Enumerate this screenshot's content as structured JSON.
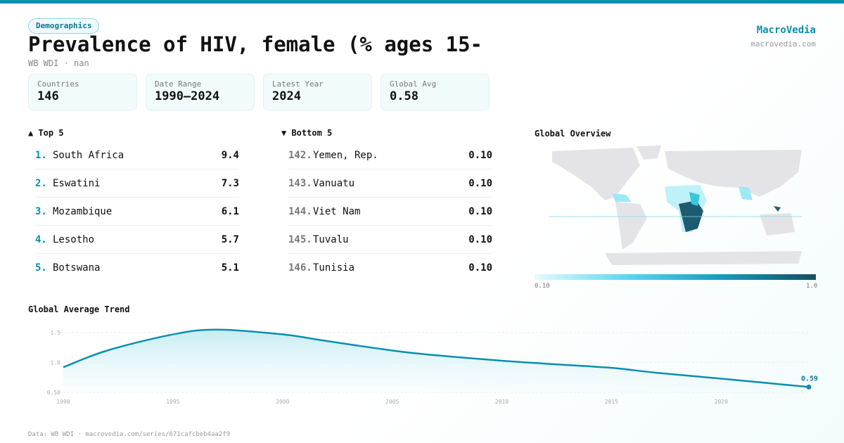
{
  "header": {
    "category": "Demographics",
    "title": "Prevalence of HIV, female (% ages 15-",
    "subtitle": "WB WDI · nan",
    "brand": "MacroVedia",
    "brand_url": "macrovedia.com"
  },
  "stats": [
    {
      "label": "Countries",
      "value": "146"
    },
    {
      "label": "Date Range",
      "value": "1990–2024"
    },
    {
      "label": "Latest Year",
      "value": "2024"
    },
    {
      "label": "Global Avg",
      "value": "0.58"
    }
  ],
  "top5": {
    "title": "▲ Top 5",
    "items": [
      {
        "rank": "1.",
        "name": "South Africa",
        "value": "9.4"
      },
      {
        "rank": "2.",
        "name": "Eswatini",
        "value": "7.3"
      },
      {
        "rank": "3.",
        "name": "Mozambique",
        "value": "6.1"
      },
      {
        "rank": "4.",
        "name": "Lesotho",
        "value": "5.7"
      },
      {
        "rank": "5.",
        "name": "Botswana",
        "value": "5.1"
      }
    ]
  },
  "bottom5": {
    "title": "▼ Bottom 5",
    "items": [
      {
        "rank": "142.",
        "name": "Yemen, Rep.",
        "value": "0.10"
      },
      {
        "rank": "143.",
        "name": "Vanuatu",
        "value": "0.10"
      },
      {
        "rank": "144.",
        "name": "Viet Nam",
        "value": "0.10"
      },
      {
        "rank": "145.",
        "name": "Tuvalu",
        "value": "0.10"
      },
      {
        "rank": "146.",
        "name": "Tunisia",
        "value": "0.10"
      }
    ]
  },
  "map": {
    "title": "Global Overview",
    "legend_min": "0.10",
    "legend_max": "1.0",
    "colors": {
      "low": "#e6fbff",
      "mid": "#11a1c1",
      "high": "#154e63",
      "nodata": "#e4e4e8"
    }
  },
  "chart_data": {
    "type": "area",
    "title": "Global Average Trend",
    "x": [
      1990,
      1992,
      1995,
      1997,
      2000,
      2002,
      2005,
      2007,
      2010,
      2012,
      2015,
      2017,
      2020,
      2022,
      2024
    ],
    "y": [
      0.92,
      1.2,
      1.47,
      1.55,
      1.47,
      1.36,
      1.2,
      1.12,
      1.03,
      0.98,
      0.91,
      0.83,
      0.73,
      0.66,
      0.59
    ],
    "xticks": [
      1990,
      1995,
      2000,
      2005,
      2010,
      2015,
      2020
    ],
    "yticks": [
      0.5,
      1.0,
      1.5
    ],
    "ytick_labels": [
      "0.50",
      "1.0",
      "1.5"
    ],
    "ylim": [
      0.5,
      1.6
    ],
    "xlim": [
      1990,
      2024
    ],
    "last_label": "0.59",
    "color": "#0a8fb0",
    "grid": true
  },
  "footer": "Data: WB WDI · macrovedia.com/series/671cafcbeb4aa2f9"
}
